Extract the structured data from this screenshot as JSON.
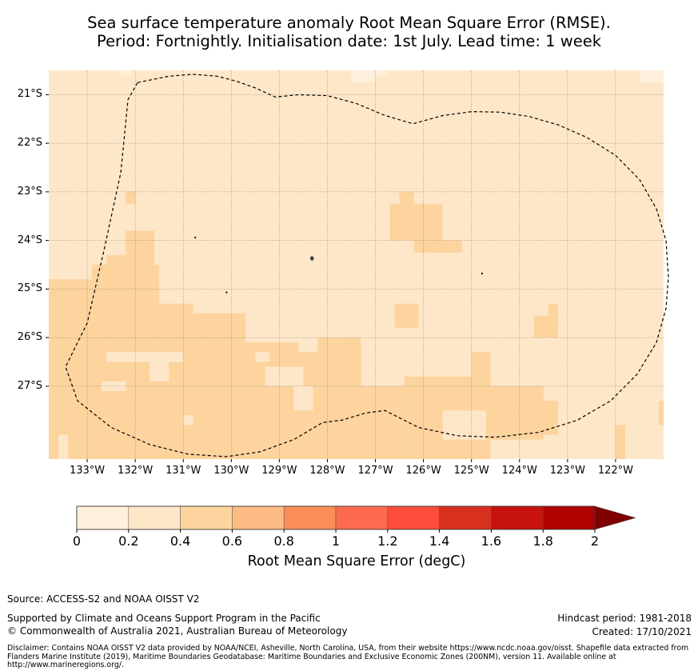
{
  "title": {
    "line1": "Sea surface temperature anomaly Root Mean Square Error (RMSE).",
    "line2": "Period: Fortnightly. Initialisation date: 1st July. Lead time: 1 week"
  },
  "map": {
    "lon_range": [
      -133.8,
      -121.0
    ],
    "lat_range": [
      -28.5,
      -20.5
    ],
    "lat_ticks": [
      "21°S",
      "22°S",
      "23°S",
      "24°S",
      "25°S",
      "26°S",
      "27°S"
    ],
    "lon_ticks": [
      "133°W",
      "132°W",
      "131°W",
      "130°W",
      "129°W",
      "128°W",
      "127°W",
      "126°W",
      "125°W",
      "124°W",
      "123°W",
      "122°W"
    ],
    "background_color": "#fee7c9",
    "grid": true,
    "boundary_style": "dashed",
    "rmse_0_0_2_cells_bbox_degrees": [
      [
        -127.5,
        -20.5,
        -127.0,
        -20.75
      ],
      [
        -127.0,
        -20.5,
        -126.75,
        -20.6
      ],
      [
        -121.5,
        -20.5,
        -121.0,
        -20.75
      ],
      [
        -132.3,
        -20.5,
        -132.1,
        -20.6
      ]
    ],
    "rmse_0_4_0_6_cells_bbox_degrees": [
      [
        -133.8,
        -24.8,
        -132.8,
        -28.5
      ],
      [
        -132.9,
        -24.5,
        -131.5,
        -28.5
      ],
      [
        -131.5,
        -25.3,
        -130.8,
        -28.5
      ],
      [
        -131.0,
        -25.5,
        -129.7,
        -28.5
      ],
      [
        -129.8,
        -26.1,
        -128.6,
        -28.5
      ],
      [
        -128.7,
        -26.3,
        -128.1,
        -28.5
      ],
      [
        -128.2,
        -26.0,
        -127.3,
        -28.5
      ],
      [
        -127.3,
        -27.0,
        -126.4,
        -28.5
      ],
      [
        -126.4,
        -26.8,
        -124.6,
        -28.5
      ],
      [
        -124.7,
        -27.0,
        -123.5,
        -28.1
      ],
      [
        -123.8,
        -27.3,
        -123.2,
        -28.0
      ],
      [
        -125.0,
        -26.3,
        -124.6,
        -27.0
      ],
      [
        -132.2,
        -23.0,
        -132.0,
        -23.25
      ],
      [
        -132.2,
        -23.8,
        -131.6,
        -24.5
      ],
      [
        -132.6,
        -24.3,
        -132.2,
        -24.6
      ],
      [
        -126.5,
        -23.0,
        -126.2,
        -23.25
      ],
      [
        -126.7,
        -23.25,
        -125.6,
        -24.0
      ],
      [
        -126.2,
        -24.0,
        -125.2,
        -24.25
      ],
      [
        -126.6,
        -25.3,
        -126.1,
        -25.8
      ],
      [
        -123.4,
        -25.3,
        -123.2,
        -25.8
      ],
      [
        -123.7,
        -25.55,
        -123.2,
        -26.0
      ],
      [
        -122.0,
        -27.8,
        -121.8,
        -28.5
      ],
      [
        -121.1,
        -27.3,
        -121.0,
        -27.8
      ]
    ],
    "rmse_0_2_0_4_holes_bbox_degrees": [
      [
        -132.6,
        -26.3,
        -131.0,
        -26.5
      ],
      [
        -132.7,
        -26.9,
        -132.2,
        -27.1
      ],
      [
        -131.7,
        -26.5,
        -131.3,
        -26.9
      ],
      [
        -131.0,
        -27.6,
        -130.8,
        -27.8
      ],
      [
        -129.3,
        -26.6,
        -128.5,
        -27.0
      ],
      [
        -128.7,
        -27.0,
        -128.3,
        -27.5
      ],
      [
        -133.6,
        -28.0,
        -133.4,
        -28.5
      ],
      [
        -125.6,
        -27.5,
        -124.7,
        -28.1
      ],
      [
        -129.5,
        -26.3,
        -129.2,
        -26.5
      ],
      [
        -127.3,
        -20.5,
        -126.6,
        -20.6
      ]
    ],
    "boundary_points_degrees": [
      [
        -131.95,
        -20.75
      ],
      [
        -131.3,
        -20.62
      ],
      [
        -130.8,
        -20.58
      ],
      [
        -130.3,
        -20.62
      ],
      [
        -129.9,
        -20.72
      ],
      [
        -129.5,
        -20.86
      ],
      [
        -129.08,
        -21.05
      ],
      [
        -128.6,
        -21.0
      ],
      [
        -128.0,
        -21.02
      ],
      [
        -127.4,
        -21.18
      ],
      [
        -126.82,
        -21.42
      ],
      [
        -126.22,
        -21.6
      ],
      [
        -125.6,
        -21.43
      ],
      [
        -125.0,
        -21.35
      ],
      [
        -124.4,
        -21.36
      ],
      [
        -123.8,
        -21.45
      ],
      [
        -123.2,
        -21.62
      ],
      [
        -122.6,
        -21.88
      ],
      [
        -122.0,
        -22.25
      ],
      [
        -121.5,
        -22.75
      ],
      [
        -121.15,
        -23.35
      ],
      [
        -120.95,
        -24.0
      ],
      [
        -120.9,
        -24.75
      ],
      [
        -120.95,
        -25.4
      ],
      [
        -121.15,
        -26.1
      ],
      [
        -121.55,
        -26.75
      ],
      [
        -122.1,
        -27.3
      ],
      [
        -122.8,
        -27.7
      ],
      [
        -123.6,
        -27.95
      ],
      [
        -124.5,
        -28.05
      ],
      [
        -125.3,
        -28.02
      ],
      [
        -126.1,
        -27.85
      ],
      [
        -126.8,
        -27.5
      ],
      [
        -127.2,
        -27.55
      ],
      [
        -127.7,
        -27.7
      ],
      [
        -128.1,
        -27.75
      ],
      [
        -128.7,
        -28.1
      ],
      [
        -129.4,
        -28.35
      ],
      [
        -130.1,
        -28.45
      ],
      [
        -130.9,
        -28.4
      ],
      [
        -131.7,
        -28.2
      ],
      [
        -132.5,
        -27.85
      ],
      [
        -133.2,
        -27.3
      ],
      [
        -133.45,
        -26.6
      ],
      [
        -133.0,
        -25.7
      ],
      [
        -132.65,
        -24.2
      ],
      [
        -132.3,
        -22.6
      ],
      [
        -132.15,
        -21.1
      ],
      [
        -131.95,
        -20.75
      ]
    ],
    "islands_degrees": [
      [
        -128.32,
        -24.37
      ],
      [
        -124.78,
        -24.68
      ],
      [
        -130.75,
        -23.94
      ],
      [
        -130.1,
        -25.07
      ]
    ]
  },
  "colorbar": {
    "ticks": [
      "0",
      "0.2",
      "0.4",
      "0.6",
      "0.8",
      "1",
      "1.2",
      "1.4",
      "1.6",
      "1.8",
      "2"
    ],
    "colors": [
      "#fff0dc",
      "#fee7c9",
      "#fdd49e",
      "#fdbb84",
      "#fc8d59",
      "#fd6a50",
      "#fb4c3c",
      "#d7301f",
      "#c8120d",
      "#b10000",
      "#7f0000"
    ],
    "label": "Root Mean Square Error (degC)",
    "extend": "max"
  },
  "footer": {
    "source": "Source: ACCESS-S2 and NOAA OISST V2",
    "supported": "Supported by Climate and Oceans Support Program in the Pacific",
    "copyright": "© Commonwealth of Australia 2021, Australian Bureau of Meteorology",
    "hindcast": "Hindcast period: 1981-2018",
    "created": "Created: 17/10/2021",
    "disclaimer": "Disclaimer: Contains NOAA OISST V2 data provided by NOAA/NCEI, Asheville, North Carolina, USA, from their website https://www.ncdc.noaa.gov/oisst. Shapefile data extracted from Flanders Marine Institute (2019), Maritime Boundaries Geodatabase: Maritime Boundaries and Exclusive Economic Zones (200NM), version 11. Available online at http://www.marineregions.org/."
  }
}
